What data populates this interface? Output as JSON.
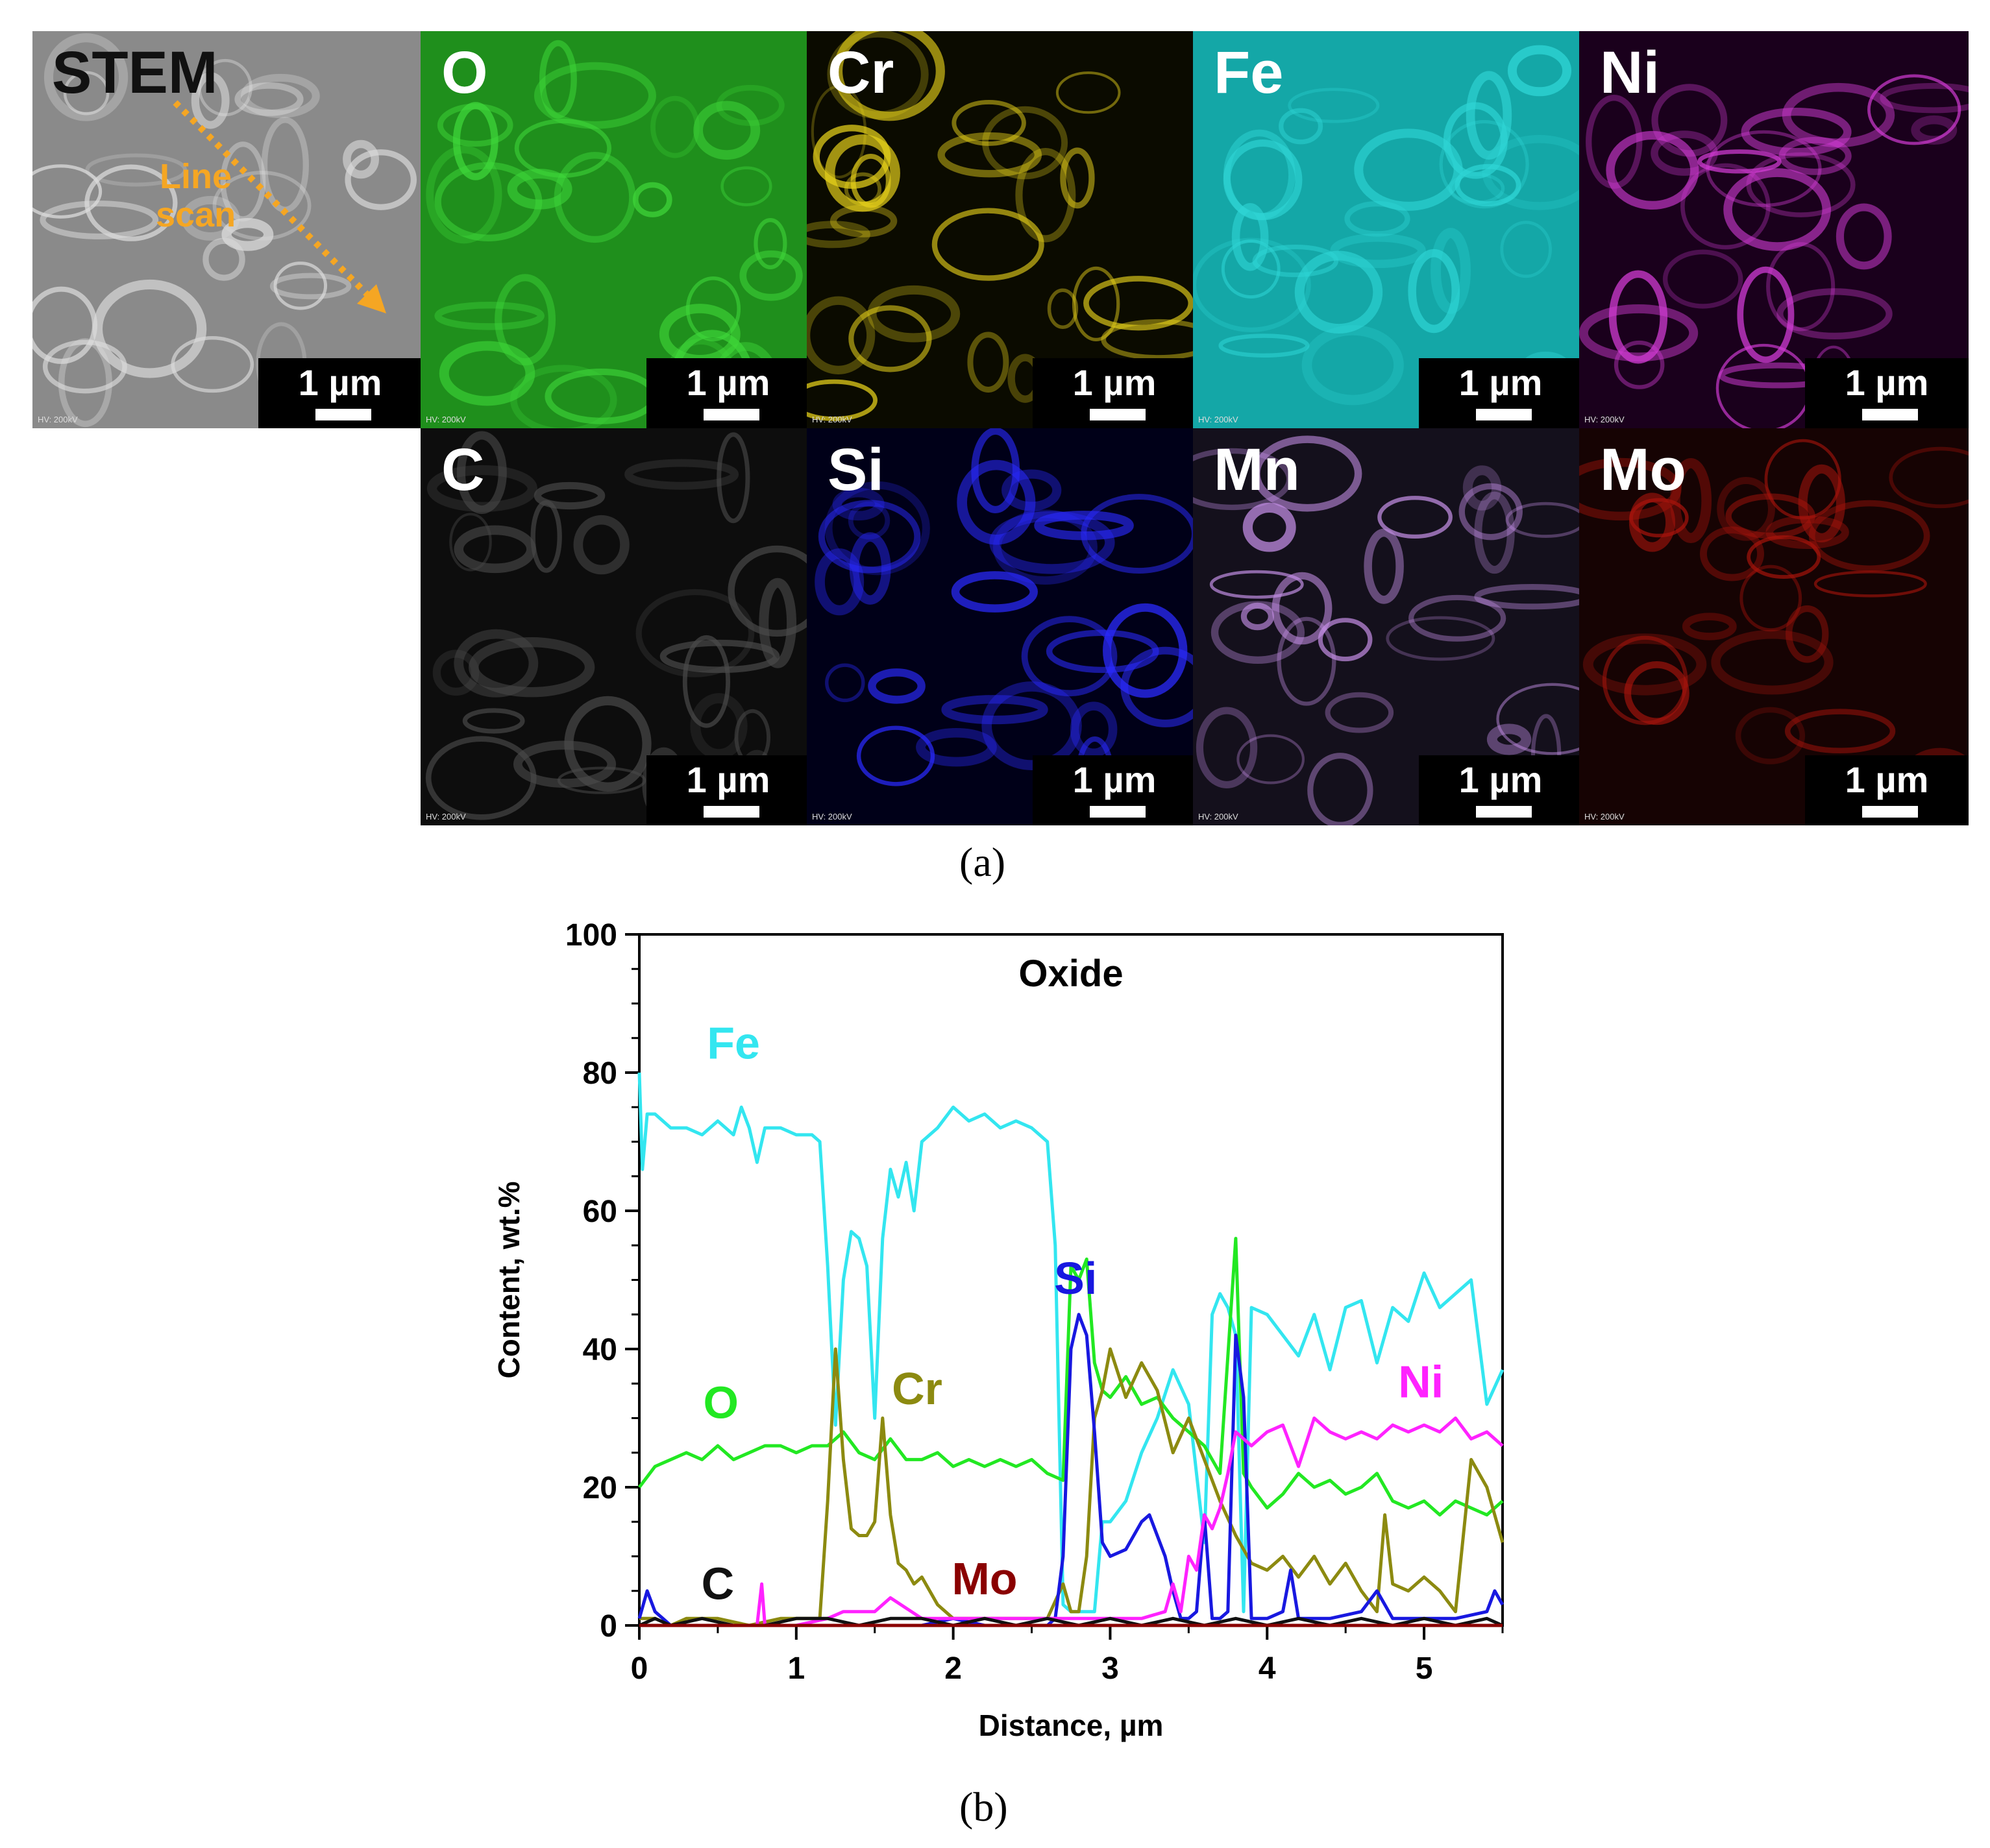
{
  "figure_a": {
    "panels": [
      {
        "id": "stem",
        "label": "STEM",
        "bg": "#8a8a8a",
        "accent": "#dcdcdc"
      },
      {
        "id": "O",
        "label": "O",
        "bg": "#1f8f1c",
        "accent": "#3fd83a"
      },
      {
        "id": "Cr",
        "label": "Cr",
        "bg": "#0b0b00",
        "accent": "#e8d21a"
      },
      {
        "id": "Fe",
        "label": "Fe",
        "bg": "#14a7a7",
        "accent": "#2fd6d6"
      },
      {
        "id": "Ni",
        "label": "Ni",
        "bg": "#1a001c",
        "accent": "#d33cd6"
      },
      {
        "id": "C",
        "label": "C",
        "bg": "#0d0d0d",
        "accent": "#4a4a4a"
      },
      {
        "id": "Si",
        "label": "Si",
        "bg": "#000018",
        "accent": "#2a2aff"
      },
      {
        "id": "Mn",
        "label": "Mn",
        "bg": "#14101c",
        "accent": "#c48fe6"
      },
      {
        "id": "Mo",
        "label": "Mo",
        "bg": "#160303",
        "accent": "#a8140c"
      }
    ],
    "scale_label": "1 µm",
    "hv_label": "HV: 200kV",
    "linescan_label_line1": "Line",
    "linescan_label_line2": "scan",
    "linescan_color": "#f5a623",
    "caption": "(a)"
  },
  "caption_b": "(b)",
  "chart_data": {
    "type": "line",
    "title": "Oxide",
    "xlabel": "Distance, µm",
    "ylabel": "Content, wt.%",
    "xlim": [
      0,
      5.5
    ],
    "ylim": [
      0,
      100
    ],
    "xticks": [
      0,
      1,
      2,
      3,
      4,
      5
    ],
    "yticks": [
      0,
      20,
      40,
      60,
      80,
      100
    ],
    "series": [
      {
        "name": "Fe",
        "color": "#33e6f0",
        "x": [
          0,
          0.02,
          0.05,
          0.1,
          0.2,
          0.3,
          0.4,
          0.5,
          0.6,
          0.65,
          0.7,
          0.75,
          0.8,
          0.9,
          1.0,
          1.1,
          1.15,
          1.2,
          1.25,
          1.3,
          1.35,
          1.4,
          1.45,
          1.5,
          1.55,
          1.6,
          1.65,
          1.7,
          1.75,
          1.8,
          1.9,
          2.0,
          2.1,
          2.2,
          2.3,
          2.4,
          2.5,
          2.6,
          2.65,
          2.7,
          2.75,
          2.8,
          2.85,
          2.9,
          2.95,
          3.0,
          3.1,
          3.2,
          3.3,
          3.4,
          3.5,
          3.6,
          3.65,
          3.7,
          3.75,
          3.8,
          3.85,
          3.9,
          4.0,
          4.1,
          4.2,
          4.3,
          4.4,
          4.5,
          4.6,
          4.7,
          4.8,
          4.9,
          5.0,
          5.1,
          5.2,
          5.3,
          5.4,
          5.5
        ],
        "y": [
          80,
          66,
          74,
          74,
          72,
          72,
          71,
          73,
          71,
          75,
          72,
          67,
          72,
          72,
          71,
          71,
          70,
          52,
          29,
          50,
          57,
          56,
          52,
          30,
          56,
          66,
          62,
          67,
          60,
          70,
          72,
          75,
          73,
          74,
          72,
          73,
          72,
          70,
          55,
          3,
          2,
          2,
          2,
          2,
          15,
          15,
          18,
          25,
          30,
          37,
          32,
          12,
          45,
          48,
          46,
          42,
          2,
          46,
          45,
          42,
          39,
          45,
          37,
          46,
          47,
          38,
          46,
          44,
          51,
          46,
          48,
          50,
          32,
          37
        ]
      },
      {
        "name": "O",
        "color": "#22e822",
        "x": [
          0,
          0.1,
          0.2,
          0.3,
          0.4,
          0.5,
          0.6,
          0.7,
          0.8,
          0.9,
          1.0,
          1.1,
          1.2,
          1.3,
          1.4,
          1.5,
          1.6,
          1.7,
          1.8,
          1.9,
          2.0,
          2.1,
          2.2,
          2.3,
          2.4,
          2.5,
          2.6,
          2.7,
          2.75,
          2.8,
          2.85,
          2.9,
          2.95,
          3.0,
          3.1,
          3.2,
          3.3,
          3.4,
          3.5,
          3.6,
          3.7,
          3.8,
          3.85,
          3.9,
          4.0,
          4.1,
          4.2,
          4.3,
          4.4,
          4.5,
          4.6,
          4.7,
          4.8,
          4.9,
          5.0,
          5.1,
          5.2,
          5.3,
          5.4,
          5.5
        ],
        "y": [
          20,
          23,
          24,
          25,
          24,
          26,
          24,
          25,
          26,
          26,
          25,
          26,
          26,
          28,
          25,
          24,
          27,
          24,
          24,
          25,
          23,
          24,
          23,
          24,
          23,
          24,
          22,
          21,
          52,
          50,
          53,
          38,
          34,
          33,
          36,
          32,
          33,
          30,
          28,
          26,
          22,
          56,
          22,
          20,
          17,
          19,
          22,
          20,
          21,
          19,
          20,
          22,
          18,
          17,
          18,
          16,
          18,
          17,
          16,
          18
        ]
      },
      {
        "name": "Cr",
        "color": "#8c8a10",
        "x": [
          0,
          0.1,
          0.2,
          0.3,
          0.5,
          0.7,
          0.9,
          1.0,
          1.1,
          1.15,
          1.2,
          1.25,
          1.3,
          1.35,
          1.4,
          1.45,
          1.5,
          1.55,
          1.6,
          1.65,
          1.7,
          1.75,
          1.8,
          1.9,
          2.0,
          2.2,
          2.4,
          2.6,
          2.7,
          2.75,
          2.8,
          2.85,
          2.9,
          2.95,
          3.0,
          3.1,
          3.2,
          3.3,
          3.4,
          3.5,
          3.6,
          3.7,
          3.8,
          3.9,
          4.0,
          4.1,
          4.2,
          4.3,
          4.4,
          4.5,
          4.6,
          4.7,
          4.75,
          4.8,
          4.9,
          5.0,
          5.1,
          5.2,
          5.3,
          5.4,
          5.5
        ],
        "y": [
          1,
          1,
          0,
          1,
          1,
          0,
          1,
          1,
          1,
          1,
          18,
          40,
          24,
          14,
          13,
          13,
          15,
          30,
          16,
          9,
          8,
          6,
          7,
          3,
          1,
          1,
          1,
          1,
          6,
          2,
          2,
          10,
          30,
          34,
          40,
          33,
          38,
          34,
          25,
          30,
          24,
          18,
          13,
          9,
          8,
          10,
          7,
          10,
          6,
          9,
          5,
          2,
          16,
          6,
          5,
          7,
          5,
          2,
          24,
          20,
          12
        ]
      },
      {
        "name": "Si",
        "color": "#1818e0",
        "x": [
          0,
          0.05,
          0.1,
          0.15,
          0.2,
          0.4,
          0.6,
          0.8,
          1.0,
          1.2,
          1.4,
          1.6,
          1.8,
          2.0,
          2.2,
          2.4,
          2.6,
          2.65,
          2.7,
          2.75,
          2.8,
          2.85,
          2.9,
          2.95,
          3.0,
          3.1,
          3.2,
          3.25,
          3.3,
          3.35,
          3.4,
          3.45,
          3.5,
          3.55,
          3.6,
          3.65,
          3.7,
          3.75,
          3.8,
          3.85,
          3.9,
          4.0,
          4.1,
          4.15,
          4.2,
          4.4,
          4.6,
          4.7,
          4.75,
          4.8,
          5.0,
          5.2,
          5.4,
          5.45,
          5.5
        ],
        "y": [
          1,
          5,
          2,
          1,
          0,
          0,
          0,
          0,
          0,
          0,
          0,
          0,
          0,
          1,
          0,
          0,
          0,
          1,
          10,
          40,
          45,
          42,
          28,
          12,
          10,
          11,
          15,
          16,
          13,
          10,
          5,
          1,
          1,
          2,
          16,
          1,
          1,
          2,
          42,
          33,
          1,
          1,
          2,
          8,
          1,
          1,
          2,
          5,
          3,
          1,
          1,
          1,
          2,
          5,
          3
        ]
      },
      {
        "name": "Ni",
        "color": "#ff22ff",
        "x": [
          0,
          0.2,
          0.4,
          0.6,
          0.75,
          0.78,
          0.8,
          1.0,
          1.2,
          1.3,
          1.4,
          1.5,
          1.6,
          1.8,
          2.0,
          2.2,
          2.4,
          2.6,
          2.8,
          3.0,
          3.2,
          3.35,
          3.4,
          3.45,
          3.5,
          3.55,
          3.6,
          3.65,
          3.7,
          3.75,
          3.8,
          3.9,
          4.0,
          4.1,
          4.2,
          4.3,
          4.4,
          4.5,
          4.6,
          4.7,
          4.8,
          4.9,
          5.0,
          5.1,
          5.2,
          5.3,
          5.4,
          5.5
        ],
        "y": [
          0,
          0,
          0,
          0,
          0,
          6,
          0,
          0,
          1,
          2,
          2,
          2,
          4,
          1,
          1,
          1,
          1,
          1,
          1,
          1,
          1,
          2,
          6,
          2,
          10,
          8,
          16,
          14,
          17,
          22,
          28,
          26,
          28,
          29,
          23,
          30,
          28,
          27,
          28,
          27,
          29,
          28,
          29,
          28,
          30,
          27,
          28,
          26
        ]
      },
      {
        "name": "C",
        "color": "#111111",
        "x": [
          0,
          0.1,
          0.2,
          0.4,
          0.6,
          0.8,
          1.0,
          1.2,
          1.4,
          1.6,
          1.8,
          2.0,
          2.2,
          2.4,
          2.6,
          2.8,
          3.0,
          3.2,
          3.4,
          3.6,
          3.8,
          4.0,
          4.2,
          4.4,
          4.6,
          4.8,
          5.0,
          5.2,
          5.4,
          5.5
        ],
        "y": [
          0,
          1,
          0,
          1,
          0,
          0,
          1,
          1,
          0,
          1,
          1,
          0,
          1,
          0,
          1,
          0,
          1,
          0,
          1,
          0,
          1,
          0,
          1,
          0,
          1,
          0,
          1,
          0,
          1,
          0
        ]
      },
      {
        "name": "Mo",
        "color": "#8a0000",
        "x": [
          0,
          0.2,
          0.4,
          0.6,
          0.8,
          1.0,
          1.2,
          1.4,
          1.6,
          1.8,
          2.0,
          2.2,
          2.4,
          2.6,
          2.8,
          3.0,
          3.2,
          3.4,
          3.6,
          3.8,
          4.0,
          4.2,
          4.4,
          4.6,
          4.8,
          5.0,
          5.2,
          5.4,
          5.5
        ],
        "y": [
          0,
          0,
          0,
          0,
          0,
          0,
          0,
          0,
          0,
          0,
          0,
          0,
          0,
          0,
          0,
          0,
          0,
          0,
          0,
          0,
          0,
          0,
          0,
          0,
          0,
          0,
          0,
          0,
          0
        ]
      }
    ]
  }
}
